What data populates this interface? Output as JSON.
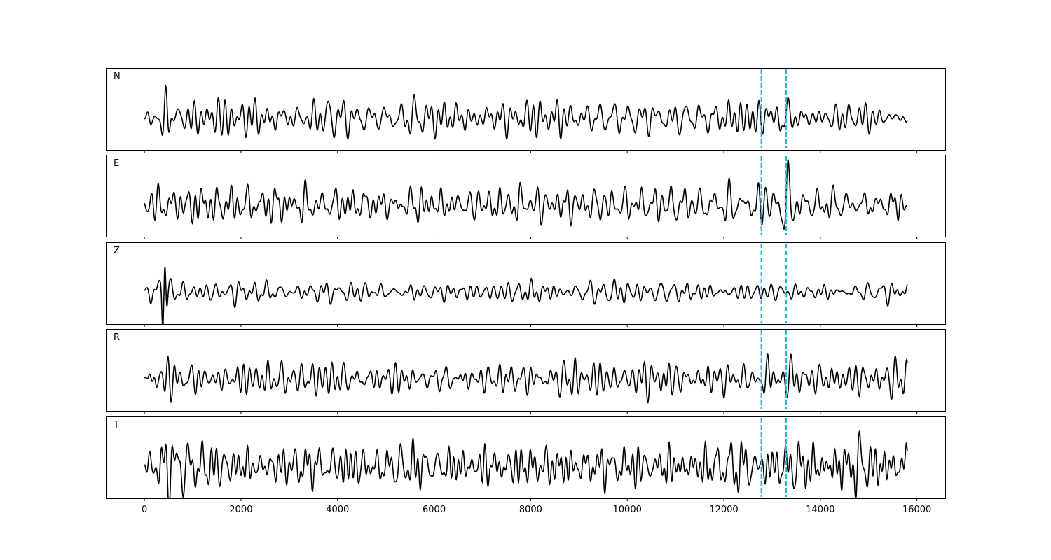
{
  "chart_data": {
    "type": "line",
    "panels": [
      {
        "label": "N"
      },
      {
        "label": "E"
      },
      {
        "label": "Z"
      },
      {
        "label": "R"
      },
      {
        "label": "T"
      }
    ],
    "x_range": [
      0,
      15800
    ],
    "xlim": [
      -800,
      16600
    ],
    "xticks": [
      0,
      2000,
      4000,
      6000,
      8000,
      10000,
      12000,
      14000,
      16000
    ],
    "xtick_labels": [
      "0",
      "2000",
      "4000",
      "6000",
      "8000",
      "10000",
      "12000",
      "14000",
      "16000"
    ],
    "markers": [
      12780,
      13290
    ],
    "trace_color": "#000000",
    "marker_color": "#17becf",
    "grid": false,
    "legend": false
  }
}
